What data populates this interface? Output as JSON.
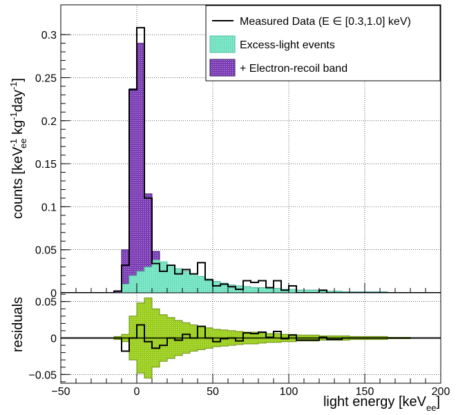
{
  "chart_data": [
    {
      "type": "histogram",
      "panel": "main",
      "xlabel": "light energy [keV_ee]",
      "ylabel": "counts [keV_ee^-1 kg^-1 day^-1]",
      "xlim": [
        -50,
        200
      ],
      "ylim": [
        0,
        0.325
      ],
      "xticks": [
        "-50",
        "0",
        "50",
        "100",
        "150",
        "200"
      ],
      "yticks": [
        "0",
        "0.05",
        "0.1",
        "0.15",
        "0.2",
        "0.25",
        "0.3"
      ],
      "grid": true,
      "legend_position": "top-right",
      "legend": [
        {
          "label": "Measured Data (E ∈ [0.3,1.0] keV)",
          "style": "line",
          "color": "#000000"
        },
        {
          "label": "Excess-light events",
          "style": "fill",
          "color": "#7ee8c8"
        },
        {
          "label": "+ Electron-recoil band",
          "style": "fill",
          "color": "#7b3db3"
        }
      ],
      "bin_edges": [
        -15,
        -10,
        -5,
        0,
        5,
        10,
        15,
        20,
        25,
        30,
        35,
        40,
        45,
        50,
        55,
        60,
        65,
        70,
        75,
        80,
        85,
        90,
        95,
        100,
        105,
        110,
        115,
        120,
        125,
        130,
        135,
        140,
        145,
        150,
        155,
        160,
        165,
        170,
        175,
        180
      ],
      "series": [
        {
          "name": "+ Electron-recoil band",
          "kind": "fill",
          "color": "#7b3db3",
          "values": [
            0.002,
            0.05,
            0.237,
            0.29,
            0.115,
            0.048,
            0.035,
            0.03,
            0.025,
            0.022,
            0.02,
            0.018,
            0.016,
            0.013,
            0.011,
            0.009,
            0.008,
            0.007,
            0.006,
            0.006,
            0.005,
            0.005,
            0.004,
            0.004,
            0.003,
            0.003,
            0.003,
            0.002,
            0.002,
            0.002,
            0.001,
            0.001,
            0.001,
            0.001,
            0.001,
            0.001,
            0.0,
            0.0,
            0.0
          ]
        },
        {
          "name": "Excess-light events",
          "kind": "fill",
          "color": "#7ee8c8",
          "values": [
            0.0,
            0.01,
            0.02,
            0.025,
            0.03,
            0.038,
            0.036,
            0.032,
            0.028,
            0.025,
            0.022,
            0.019,
            0.016,
            0.013,
            0.011,
            0.009,
            0.008,
            0.007,
            0.006,
            0.006,
            0.005,
            0.005,
            0.004,
            0.004,
            0.003,
            0.003,
            0.003,
            0.002,
            0.002,
            0.002,
            0.001,
            0.001,
            0.001,
            0.001,
            0.001,
            0.001,
            0.0,
            0.0,
            0.0
          ]
        },
        {
          "name": "Measured Data (E ∈ [0.3,1.0] keV)",
          "kind": "step",
          "color": "#000000",
          "values": [
            0.002,
            0.032,
            0.236,
            0.308,
            0.11,
            0.034,
            0.025,
            0.032,
            0.022,
            0.027,
            0.022,
            0.035,
            0.015,
            0.008,
            0.01,
            0.007,
            0.004,
            0.014,
            0.012,
            0.014,
            0.006,
            0.014,
            0.003,
            0.008,
            0.0,
            0.0,
            0.0,
            0.003,
            0.0,
            0.0,
            0.0,
            0.0,
            0.0,
            0.0,
            0.0,
            0.0,
            0.0,
            0.0,
            0.0
          ]
        }
      ]
    },
    {
      "type": "histogram",
      "panel": "residuals",
      "ylabel": "residuals",
      "xlim": [
        -50,
        200
      ],
      "ylim": [
        -0.062,
        0.062
      ],
      "yticks": [
        "−0.05",
        "0",
        "0.05"
      ],
      "grid": true,
      "bin_edges": [
        -15,
        -10,
        -5,
        0,
        5,
        10,
        15,
        20,
        25,
        30,
        35,
        40,
        45,
        50,
        55,
        60,
        65,
        70,
        75,
        80,
        85,
        90,
        95,
        100,
        105,
        110,
        115,
        120,
        125,
        130,
        135,
        140,
        145,
        150,
        155,
        160,
        165,
        170,
        175,
        180
      ],
      "band_halfwidth": [
        0.002,
        0.005,
        0.03,
        0.048,
        0.055,
        0.04,
        0.032,
        0.028,
        0.024,
        0.021,
        0.018,
        0.016,
        0.014,
        0.012,
        0.011,
        0.01,
        0.009,
        0.008,
        0.008,
        0.007,
        0.006,
        0.006,
        0.005,
        0.005,
        0.004,
        0.004,
        0.004,
        0.003,
        0.003,
        0.003,
        0.003,
        0.002,
        0.002,
        0.002,
        0.002,
        0.002,
        0.001,
        0.001,
        0.001
      ],
      "band_color": "#9acd1e",
      "residual_values": [
        0.0,
        -0.018,
        0.0,
        0.018,
        -0.005,
        -0.014,
        -0.01,
        0.0,
        -0.003,
        0.005,
        0.0,
        0.016,
        0.0,
        -0.005,
        -0.001,
        0.0,
        -0.004,
        0.007,
        0.006,
        0.008,
        0.001,
        0.009,
        -0.001,
        0.004,
        -0.003,
        -0.003,
        -0.003,
        0.001,
        -0.002,
        -0.002,
        0.0,
        0.0,
        0.0,
        0.0,
        0.0,
        0.0,
        0.0,
        0.0,
        0.0
      ]
    }
  ]
}
